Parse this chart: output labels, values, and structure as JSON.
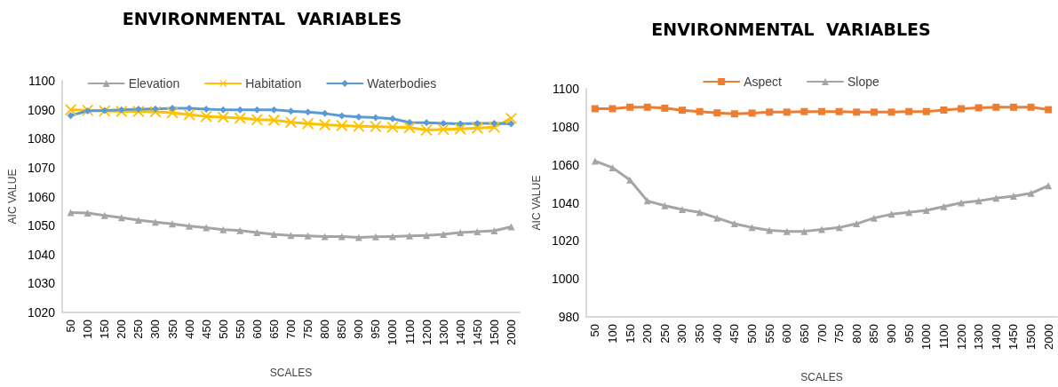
{
  "chart_data": [
    {
      "type": "line",
      "title": "ENVIRONMENTAL  VARIABLES",
      "xlabel": "SCALES",
      "ylabel": "AIC VALUE",
      "categories": [
        "50",
        "100",
        "150",
        "200",
        "250",
        "300",
        "350",
        "400",
        "450",
        "500",
        "550",
        "600",
        "650",
        "700",
        "750",
        "800",
        "850",
        "900",
        "950",
        "1000",
        "1100",
        "1200",
        "1300",
        "1400",
        "1450",
        "1500",
        "2000"
      ],
      "ylim": [
        1020,
        1100
      ],
      "yticks": [
        1020,
        1030,
        1040,
        1050,
        1060,
        1070,
        1080,
        1090,
        1100
      ],
      "grid": false,
      "legend": "top",
      "series": [
        {
          "name": "Elevation",
          "color": "#a5a5a5",
          "marker": "triangle",
          "values": [
            1054.5,
            1054.3,
            1053.5,
            1052.7,
            1051.9,
            1051.2,
            1050.6,
            1049.8,
            1049.3,
            1048.6,
            1048.3,
            1047.6,
            1047,
            1046.6,
            1046.4,
            1046.2,
            1046.2,
            1045.9,
            1046.1,
            1046.2,
            1046.4,
            1046.6,
            1047,
            1047.6,
            1047.9,
            1048.2,
            1049.6
          ]
        },
        {
          "name": "Habitation",
          "color": "#ffc000",
          "marker": "cross",
          "values": [
            1090,
            1089.8,
            1089.6,
            1089.4,
            1089.4,
            1089.3,
            1089,
            1088.3,
            1087.7,
            1087.4,
            1087.1,
            1086.6,
            1086.4,
            1085.7,
            1085.2,
            1084.8,
            1084.5,
            1084.3,
            1084.2,
            1084,
            1083.8,
            1083,
            1083.2,
            1083.4,
            1083.7,
            1084,
            1087
          ]
        },
        {
          "name": "Waterbodies",
          "color": "#5b9bd5",
          "marker": "diamond",
          "values": [
            1088,
            1089.6,
            1089.7,
            1090,
            1090.2,
            1090.3,
            1090.5,
            1090.5,
            1090.2,
            1090,
            1090,
            1090,
            1090,
            1089.5,
            1089.2,
            1088.7,
            1087.9,
            1087.5,
            1087.3,
            1086.9,
            1085.6,
            1085.5,
            1085.3,
            1085.1,
            1085.3,
            1085.3,
            1085.1
          ]
        }
      ]
    },
    {
      "type": "line",
      "title": "ENVIRONMENTAL  VARIABLES",
      "xlabel": "SCALES",
      "ylabel": "AIC VALUE",
      "categories": [
        "50",
        "100",
        "150",
        "200",
        "250",
        "300",
        "350",
        "400",
        "450",
        "500",
        "550",
        "600",
        "650",
        "700",
        "750",
        "800",
        "850",
        "900",
        "950",
        "1000",
        "1100",
        "1200",
        "1300",
        "1400",
        "1450",
        "1500",
        "2000"
      ],
      "ylim": [
        980,
        1100
      ],
      "yticks": [
        980,
        1000,
        1020,
        1040,
        1060,
        1080,
        1100
      ],
      "grid": false,
      "legend": "top",
      "series": [
        {
          "name": "Aspect",
          "color": "#ed7d31",
          "marker": "square",
          "values": [
            1089.5,
            1089.5,
            1090.3,
            1090.3,
            1089.8,
            1088.7,
            1088,
            1087.3,
            1086.8,
            1087.2,
            1087.7,
            1087.7,
            1088,
            1088,
            1088,
            1087.7,
            1087.7,
            1087.7,
            1088,
            1088,
            1088.8,
            1089.5,
            1090,
            1090.3,
            1090.3,
            1090.3,
            1089
          ]
        },
        {
          "name": "Slope",
          "color": "#a5a5a5",
          "marker": "triangle",
          "values": [
            1062,
            1058.5,
            1052,
            1041,
            1038.5,
            1036.5,
            1035,
            1032,
            1029,
            1027,
            1025.5,
            1025,
            1025,
            1026,
            1027,
            1029,
            1032,
            1034,
            1035,
            1036,
            1038,
            1040,
            1041,
            1042.5,
            1043.5,
            1045,
            1049
          ]
        }
      ]
    }
  ]
}
